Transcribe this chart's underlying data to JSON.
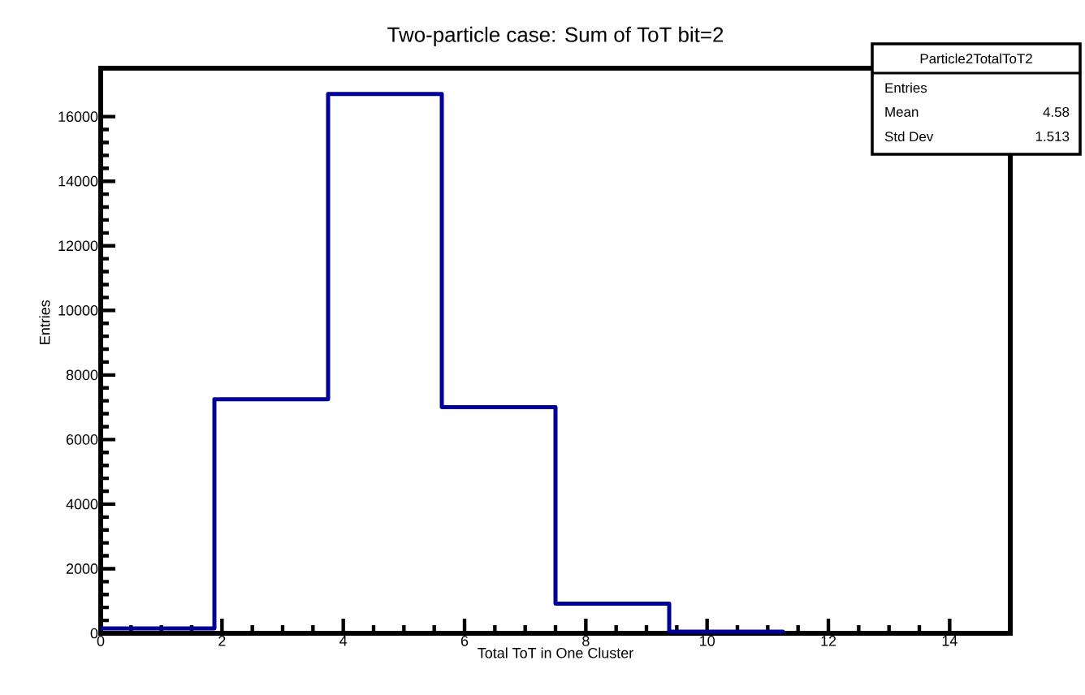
{
  "chart_data": {
    "type": "histogram",
    "title": "Two-particle case: Sum of ToT bit=2",
    "xlabel": "Total ToT in One Cluster",
    "ylabel": "Entries",
    "bins": [
      0,
      1.875,
      3.75,
      5.625,
      7.5,
      9.375,
      11.25
    ],
    "values": [
      150,
      7250,
      16700,
      7000,
      920,
      50
    ],
    "color": "#000099",
    "xlim": [
      0,
      15
    ],
    "xticks": [
      0,
      2,
      4,
      6,
      8,
      10,
      12,
      14
    ],
    "ylim": [
      0,
      17500
    ],
    "yticks": [
      0,
      2000,
      4000,
      6000,
      8000,
      10000,
      12000,
      14000,
      16000
    ],
    "annotations": [
      "Particle2TotalToT2",
      "Entries",
      "Mean",
      "4.58",
      "Std Dev",
      "1.513"
    ]
  }
}
